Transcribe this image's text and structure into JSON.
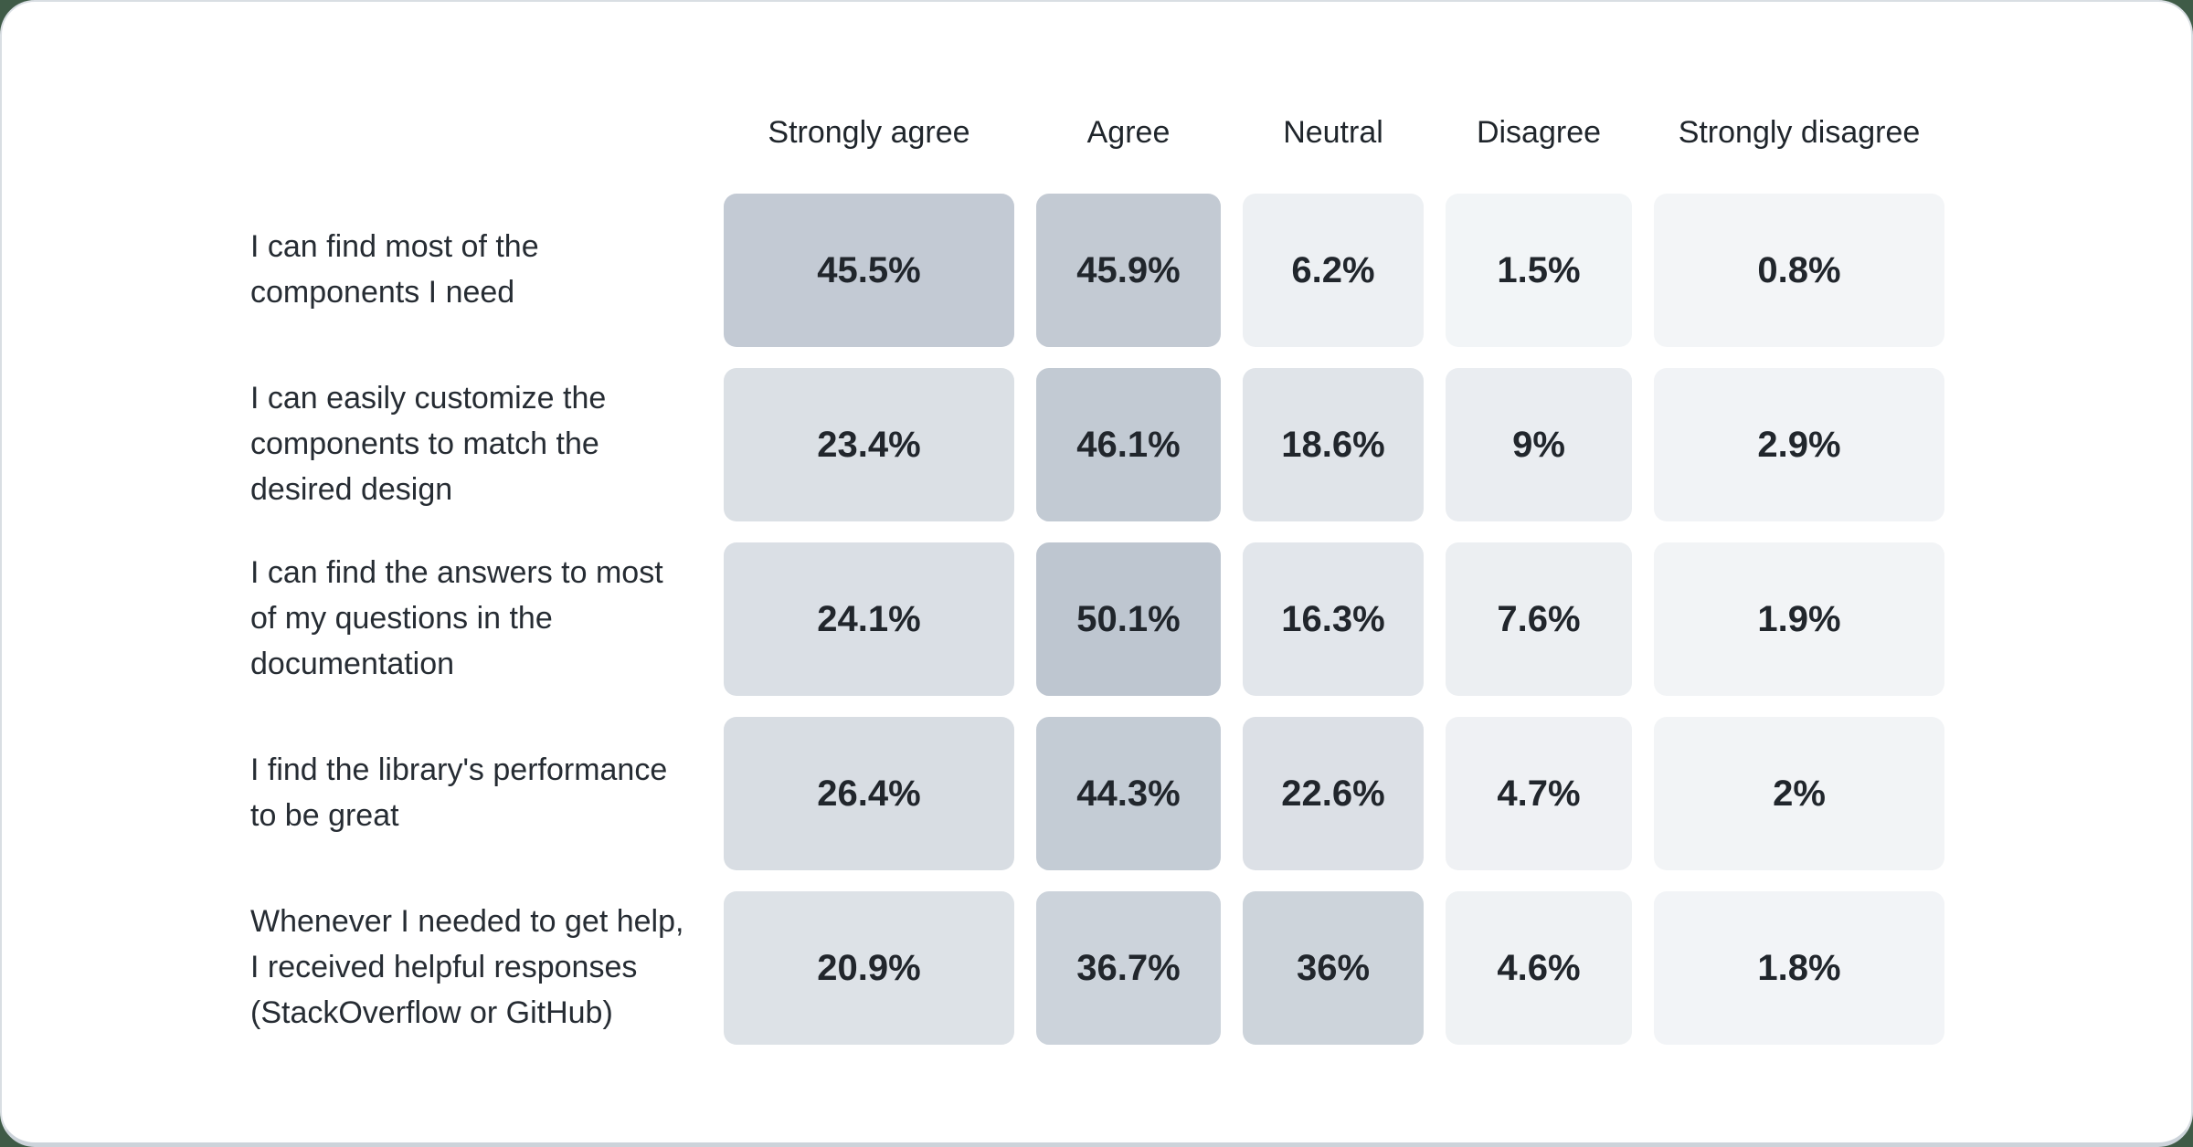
{
  "colors": {
    "page_background": "#3f5b47",
    "card_background": "#ffffff",
    "card_border": "#d9dee3",
    "card_bottom_edge": "#ccd3da",
    "header_text": "#1f252b",
    "label_text": "#262c33",
    "value_text": "#21262c"
  },
  "chart_data": {
    "type": "heatmap",
    "title": "",
    "legend_position": "top",
    "value_suffix": "%",
    "categories": [
      "Strongly agree",
      "Agree",
      "Neutral",
      "Disagree",
      "Strongly disagree"
    ],
    "rows": [
      {
        "label": "I can find most of the components I need",
        "values": [
          45.5,
          45.9,
          6.2,
          1.5,
          0.8
        ],
        "display": [
          "45.5%",
          "45.9%",
          "6.2%",
          "1.5%",
          "0.8%"
        ]
      },
      {
        "label": "I can easily customize the components to match the desired design",
        "values": [
          23.4,
          46.1,
          18.6,
          9,
          2.9
        ],
        "display": [
          "23.4%",
          "46.1%",
          "18.6%",
          "9%",
          "2.9%"
        ]
      },
      {
        "label": "I can find the answers to most of my questions in the documentation",
        "values": [
          24.1,
          50.1,
          16.3,
          7.6,
          1.9
        ],
        "display": [
          "24.1%",
          "50.1%",
          "16.3%",
          "7.6%",
          "1.9%"
        ]
      },
      {
        "label": "I find the library's performance to be great",
        "values": [
          26.4,
          44.3,
          22.6,
          4.7,
          2
        ],
        "display": [
          "26.4%",
          "44.3%",
          "22.6%",
          "4.7%",
          "2%"
        ]
      },
      {
        "label": "Whenever I needed to get help, I received helpful responses (StackOverflow or GitHub)",
        "values": [
          20.9,
          36.7,
          36,
          4.6,
          1.8
        ],
        "display": [
          "20.9%",
          "36.7%",
          "36%",
          "4.6%",
          "1.8%"
        ]
      }
    ],
    "scale": {
      "min_value": 0,
      "max_value": 50.1,
      "min_color": "#f4f6f8",
      "max_color": "#bec6d0"
    }
  }
}
